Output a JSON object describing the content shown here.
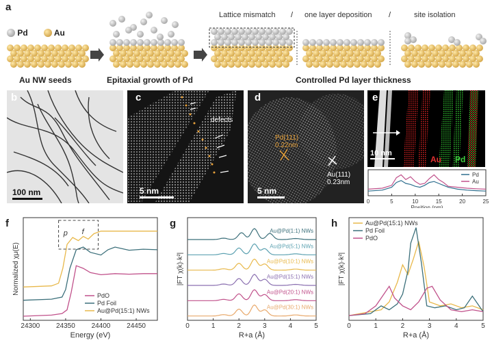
{
  "panels": {
    "a": {
      "label": "a",
      "legend": {
        "pd": "Pd",
        "au": "Au"
      },
      "captions": {
        "seeds": "Au NW seeds",
        "epitaxial": "Epitaxial growth of Pd",
        "controlled": "Controlled Pd layer thickness"
      },
      "top_labels": {
        "mismatch": "Lattice mismatch",
        "sep1": "/",
        "one_layer": "one layer deposition",
        "sep2": "/",
        "isolation": "site isolation"
      }
    },
    "b": {
      "label": "b",
      "scale": "100 nm"
    },
    "c": {
      "label": "c",
      "scale": "5 nm",
      "annotation": "defects"
    },
    "d": {
      "label": "d",
      "scale": "5 nm",
      "pd_label": "Pd(111)",
      "pd_d": "0.22nm",
      "au_label": "Au(111)",
      "au_d": "0.23nm"
    },
    "e": {
      "label": "e",
      "scale": "10 nm",
      "map_au": "Au",
      "map_pd": "Pd"
    },
    "f": {
      "label": "f"
    },
    "g": {
      "label": "g"
    },
    "h": {
      "label": "h"
    }
  },
  "colors": {
    "pd_sphere": "#a9a9a9",
    "au_sphere": "#d6a84a",
    "pdo": "#c0508a",
    "pd_foil": "#3b6f7a",
    "au_pd": "#e8b84a"
  },
  "chart_data": [
    {
      "id": "e-linescan",
      "type": "line",
      "xlabel": "Position (nm)",
      "xlim": [
        0,
        25
      ],
      "xticks": [
        "0",
        "5",
        "10",
        "15",
        "20",
        "25"
      ],
      "series": [
        {
          "name": "Pd",
          "color": "#2f6f8f",
          "x": [
            0,
            3,
            5,
            6,
            7,
            8,
            9,
            10,
            11,
            12,
            13,
            14,
            15,
            16,
            17,
            19,
            21,
            23,
            25
          ],
          "y": [
            0.1,
            0.15,
            0.3,
            0.55,
            0.65,
            0.5,
            0.45,
            0.35,
            0.3,
            0.4,
            0.55,
            0.6,
            0.5,
            0.4,
            0.3,
            0.2,
            0.15,
            0.12,
            0.1
          ]
        },
        {
          "name": "Au",
          "color": "#c0508a",
          "x": [
            0,
            3,
            5,
            6,
            7,
            8,
            9,
            10,
            11,
            12,
            13,
            14,
            15,
            16,
            17,
            19,
            21,
            23,
            25
          ],
          "y": [
            0.2,
            0.25,
            0.4,
            0.8,
            0.95,
            0.7,
            0.85,
            0.6,
            0.45,
            0.5,
            0.75,
            0.95,
            0.7,
            0.55,
            0.35,
            0.3,
            0.25,
            0.22,
            0.2
          ]
        }
      ]
    },
    {
      "id": "f-xanes",
      "type": "line",
      "xlabel": "Energy (eV)",
      "ylabel": "Normalized χμ(E)",
      "xlim": [
        24290,
        24480
      ],
      "xticks": [
        "24300",
        "24350",
        "24400",
        "24450"
      ],
      "inset_labels": [
        "p",
        "f"
      ],
      "legend_position": "bottom-right",
      "series": [
        {
          "name": "PdO",
          "color": "#c0508a",
          "x": [
            24290,
            24330,
            24345,
            24352,
            24358,
            24365,
            24375,
            24385,
            24400,
            24420,
            24440,
            24460,
            24480
          ],
          "y": [
            0.0,
            0.02,
            0.05,
            0.12,
            0.45,
            0.95,
            0.9,
            0.82,
            0.78,
            0.8,
            0.79,
            0.8,
            0.8
          ]
        },
        {
          "name": "Pd Foil",
          "color": "#3b6f7a",
          "x": [
            24290,
            24330,
            24345,
            24350,
            24356,
            24365,
            24375,
            24385,
            24400,
            24410,
            24420,
            24440,
            24460,
            24480
          ],
          "y": [
            0.3,
            0.32,
            0.36,
            0.5,
            0.9,
            1.25,
            1.3,
            1.2,
            1.15,
            1.25,
            1.3,
            1.24,
            1.26,
            1.25
          ]
        },
        {
          "name": "Au@Pd(15:1) NWs",
          "color": "#e8b84a",
          "x": [
            24290,
            24330,
            24340,
            24346,
            24352,
            24360,
            24368,
            24375,
            24382,
            24390,
            24400,
            24420,
            24440,
            24460,
            24480
          ],
          "y": [
            0.55,
            0.57,
            0.62,
            0.9,
            1.35,
            1.48,
            1.42,
            1.5,
            1.45,
            1.55,
            1.6,
            1.6,
            1.6,
            1.6,
            1.6
          ]
        }
      ]
    },
    {
      "id": "g-ft",
      "type": "line",
      "xlabel": "R+a (Å)",
      "ylabel": "|FT χ(k)·k²|",
      "xlim": [
        0,
        5
      ],
      "xticks": [
        "0",
        "1",
        "2",
        "3",
        "4",
        "5"
      ],
      "series": [
        {
          "name": "Au@Pd(1:1) NWs",
          "color": "#3b6f7a",
          "peaks": [
            2.1,
            2.6,
            3.2
          ]
        },
        {
          "name": "Au@Pd(5:1) NWs",
          "color": "#5aa0b0",
          "peaks": [
            2.0,
            2.6,
            3.0
          ]
        },
        {
          "name": "Au@Pd(10:1) NWs",
          "color": "#e8b84a",
          "peaks": [
            2.0,
            2.6,
            3.0
          ]
        },
        {
          "name": "Au@Pd(15:1) NWs",
          "color": "#8a6fb0",
          "peaks": [
            2.0,
            2.6,
            3.0
          ]
        },
        {
          "name": "Au@Pd(20:1) NWs",
          "color": "#c0508a",
          "peaks": [
            2.0,
            2.6,
            3.0
          ]
        },
        {
          "name": "Au@Pd(30:1) NWs",
          "color": "#e8a86a",
          "peaks": [
            2.0,
            2.6,
            3.0
          ]
        }
      ]
    },
    {
      "id": "h-ft",
      "type": "line",
      "xlabel": "R+a (Å)",
      "ylabel": "|FT χ(k)·k²|",
      "xlim": [
        0,
        5
      ],
      "xticks": [
        "0",
        "1",
        "2",
        "3",
        "4",
        "5"
      ],
      "legend_position": "top-left",
      "series": [
        {
          "name": "Au@Pd(15:1) NWs",
          "color": "#e8b84a",
          "x": [
            0,
            0.8,
            1.2,
            1.5,
            1.8,
            2.0,
            2.2,
            2.4,
            2.6,
            2.8,
            3.0,
            3.4,
            3.8,
            4.2,
            4.6,
            5.0
          ],
          "y": [
            0.05,
            0.15,
            0.2,
            0.4,
            0.9,
            1.35,
            1.1,
            1.5,
            1.95,
            1.3,
            0.4,
            0.3,
            0.35,
            0.25,
            0.3,
            0.2
          ]
        },
        {
          "name": "Pd Foil",
          "color": "#3b6f7a",
          "x": [
            0,
            0.8,
            1.2,
            1.5,
            1.8,
            2.0,
            2.2,
            2.3,
            2.5,
            2.7,
            2.9,
            3.2,
            3.6,
            4.0,
            4.3,
            4.6,
            5.0
          ],
          "y": [
            0.05,
            0.1,
            0.3,
            0.2,
            0.35,
            0.6,
            1.2,
            1.9,
            2.3,
            1.4,
            0.3,
            0.25,
            0.3,
            0.2,
            0.25,
            0.55,
            0.15
          ]
        },
        {
          "name": "PdO",
          "color": "#c0508a",
          "x": [
            0,
            0.6,
            1.0,
            1.3,
            1.5,
            1.7,
            2.0,
            2.3,
            2.6,
            2.9,
            3.1,
            3.4,
            3.8,
            4.2,
            4.6,
            5.0
          ],
          "y": [
            0.05,
            0.1,
            0.3,
            0.6,
            0.8,
            0.5,
            0.3,
            0.2,
            0.4,
            0.75,
            0.8,
            0.45,
            0.2,
            0.15,
            0.2,
            0.15
          ]
        }
      ]
    }
  ]
}
